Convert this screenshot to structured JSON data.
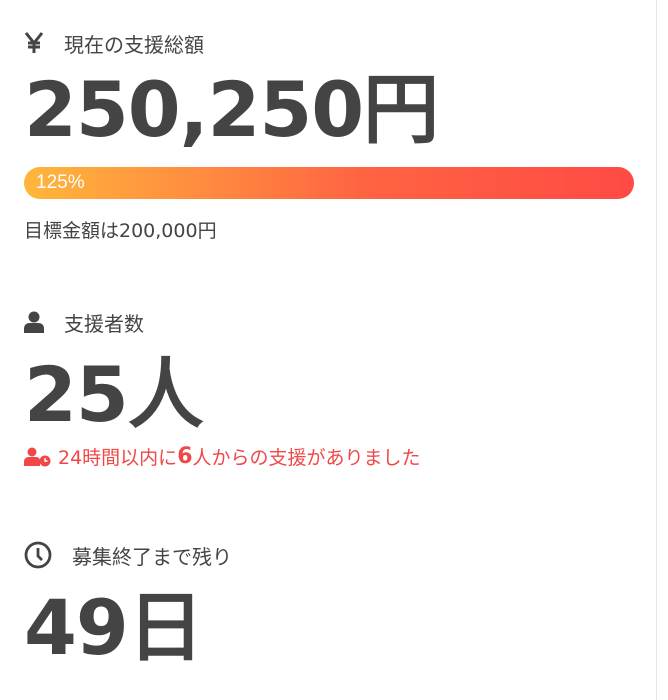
{
  "total": {
    "icon": "yen-icon",
    "label": "現在の支援総額",
    "amount": "250,250円",
    "progress_percent": 125,
    "progress_label": "125%",
    "goal_text": "目標金額は200,000円"
  },
  "supporters": {
    "icon": "user-icon",
    "label": "支援者数",
    "count": "25人",
    "recent_prefix": "24時間以内に",
    "recent_count": "6",
    "recent_suffix": "人からの支援がありました",
    "recent_icon": "user-clock-icon"
  },
  "remaining": {
    "icon": "clock-icon",
    "label": "募集終了まで残り",
    "days": "49日"
  },
  "colors": {
    "text": "#444444",
    "accent": "#f04848",
    "bar_start": "#ffb63b",
    "bar_end": "#ff4a45"
  }
}
